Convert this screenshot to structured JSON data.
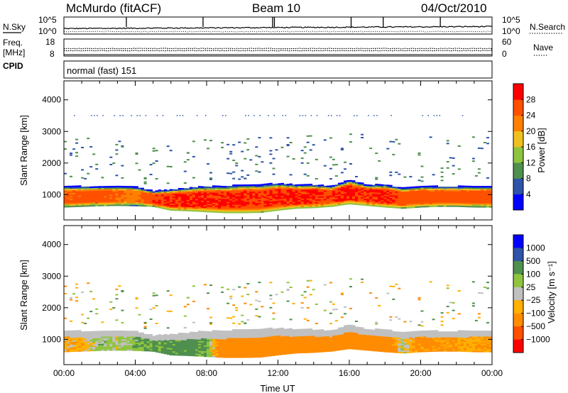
{
  "header": {
    "site": "McMurdo (fitACF)",
    "beam": "Beam 10",
    "date": "04/Oct/2010"
  },
  "status_panels": {
    "nsky_label": "N.Sky",
    "nsky_top": "10^5",
    "nsky_bottom": "10^0",
    "nsearch_label": "N.Search",
    "nsearch_top": "10^5",
    "nsearch_bottom": "10^0",
    "freq_label": "Freq.",
    "freq_unit": "[MHz]",
    "freq_top": "18",
    "freq_bottom": "8",
    "nave_label": "Nave",
    "nave_top": "60",
    "nave_bottom": "0",
    "cpid_label": "CPID",
    "cpid_value": "normal (fast) 151"
  },
  "colors": {
    "power": [
      "#0000ff",
      "#2d54a8",
      "#4f8f4f",
      "#8fc43f",
      "#f0c020",
      "#ff8000",
      "#ff5000",
      "#ff0000"
    ],
    "velocity": [
      "#ff0000",
      "#ff5000",
      "#ff8c00",
      "#ffb000",
      "#c0c0c0",
      "#8fc43f",
      "#4f8f4f",
      "#2d54a8",
      "#0000ff"
    ]
  },
  "chart_data": [
    {
      "type": "heatmap",
      "name": "power",
      "ylabel": "Slant Range [km]",
      "ylim": [
        200,
        4600
      ],
      "yticks": [
        "1000",
        "2000",
        "3000",
        "4000"
      ],
      "colorbar_label": "Power [dB]",
      "colorbar_ticks": [
        "4",
        "8",
        "12",
        "16",
        "20",
        "24",
        "28"
      ],
      "colorbar_range": [
        0,
        32
      ],
      "xlim_hours": [
        0,
        24
      ],
      "main_echo_band": {
        "hours": [
          0,
          1,
          2,
          3,
          4,
          5,
          6,
          7,
          8,
          9,
          10,
          11,
          12,
          13,
          14,
          15,
          16,
          17,
          18,
          19,
          20,
          21,
          22,
          23,
          24
        ],
        "lower_km": [
          600,
          620,
          640,
          650,
          640,
          620,
          500,
          480,
          450,
          420,
          420,
          430,
          500,
          560,
          580,
          620,
          700,
          650,
          600,
          560,
          600,
          620,
          620,
          600,
          600
        ],
        "upper_km": [
          1250,
          1250,
          1250,
          1250,
          1250,
          1100,
          1150,
          1200,
          1250,
          1250,
          1300,
          1300,
          1350,
          1300,
          1300,
          1250,
          1450,
          1300,
          1300,
          1200,
          1250,
          1250,
          1250,
          1250,
          1250
        ],
        "power_db": [
          26,
          27,
          27,
          26,
          24,
          29,
          30,
          30,
          30,
          30,
          30,
          29,
          30,
          30,
          30,
          29,
          30,
          29,
          30,
          28,
          28,
          27,
          27,
          27,
          27
        ]
      }
    },
    {
      "type": "heatmap",
      "name": "velocity",
      "ylabel": "Slant Range [km]",
      "ylim": [
        200,
        4600
      ],
      "yticks": [
        "1000",
        "2000",
        "3000",
        "4000"
      ],
      "xlabel": "Time UT",
      "xticks": [
        "00:00",
        "04:00",
        "08:00",
        "12:00",
        "16:00",
        "20:00",
        "00:00"
      ],
      "colorbar_label": "Velocity [m s⁻¹]",
      "colorbar_ticks": [
        "1000",
        "500",
        "100",
        "25",
        "−25",
        "−100",
        "−500",
        "−1000"
      ],
      "main_echo_band": {
        "hours": [
          0,
          1,
          2,
          3,
          4,
          5,
          6,
          7,
          8,
          9,
          10,
          11,
          12,
          13,
          14,
          15,
          16,
          17,
          18,
          19,
          20,
          21,
          22,
          23,
          24
        ],
        "velocity_ms": [
          -60,
          -80,
          60,
          20,
          80,
          120,
          140,
          160,
          120,
          -300,
          -350,
          -300,
          -250,
          -280,
          -300,
          -320,
          -350,
          -320,
          -300,
          20,
          -150,
          -120,
          -100,
          -80,
          -120
        ]
      }
    }
  ]
}
